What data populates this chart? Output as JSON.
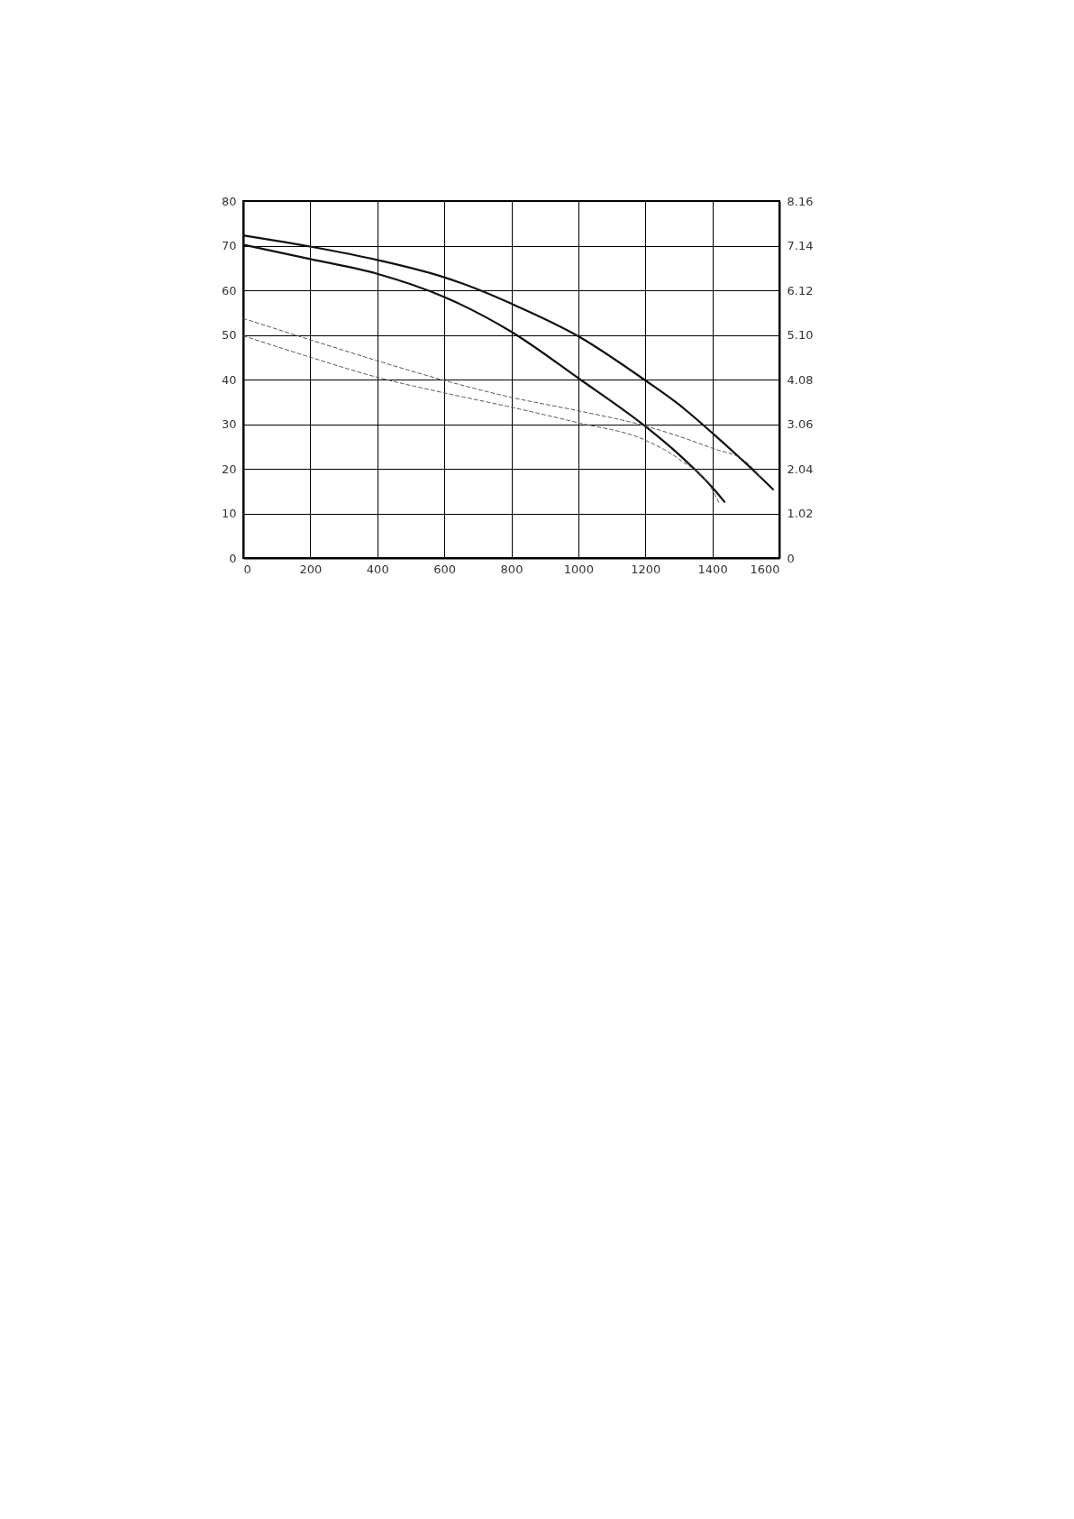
{
  "chart_data": {
    "type": "line",
    "series": [
      {
        "color": "#111111",
        "line_style": "solid",
        "x": [
          0,
          200,
          400,
          600,
          700,
          800,
          1000,
          1200,
          1300,
          1400,
          1500,
          1581
        ],
        "values": [
          72.3,
          69.8,
          66.8,
          62.9,
          60.2,
          57,
          49.7,
          39.8,
          34.4,
          28,
          21.2,
          15.4
        ]
      },
      {
        "color": "#111111",
        "line_style": "solid",
        "x": [
          0,
          200,
          400,
          600,
          800,
          1000,
          1200,
          1300,
          1400,
          1436
        ],
        "values": [
          70.2,
          67,
          63.7,
          58.5,
          50.7,
          40.3,
          29.5,
          23.2,
          15.8,
          12.6
        ]
      },
      {
        "color": "#555555",
        "line_style": "dashed",
        "x": [
          0,
          200,
          400,
          600,
          800,
          1000,
          1200,
          1400,
          1500,
          1543
        ],
        "values": [
          53.7,
          48.9,
          44.2,
          39.8,
          36,
          33,
          29.6,
          24.6,
          21.6,
          18.2
        ]
      },
      {
        "color": "#555555",
        "line_style": "dashed",
        "x": [
          0,
          200,
          400,
          600,
          800,
          1000,
          1200,
          1300,
          1400,
          1419
        ],
        "values": [
          49.8,
          45,
          40.5,
          37,
          33.8,
          30.3,
          26.4,
          22.2,
          15.2,
          12.5
        ]
      }
    ],
    "xlim": [
      0,
      1600
    ],
    "xticks": [
      0,
      200,
      400,
      600,
      800,
      1000,
      1200,
      1400,
      1600
    ],
    "ylim": [
      0,
      80
    ],
    "yticks": [
      0,
      10,
      20,
      30,
      40,
      50,
      60,
      70,
      80
    ],
    "y2lim": [
      0,
      8.16
    ],
    "y2ticks": [
      0,
      1.02,
      2.04,
      3.06,
      4.08,
      {
        "value": 5.1,
        "label": "5.10"
      },
      6.12,
      7.14,
      8.16
    ],
    "grid": true,
    "marker": "none"
  }
}
